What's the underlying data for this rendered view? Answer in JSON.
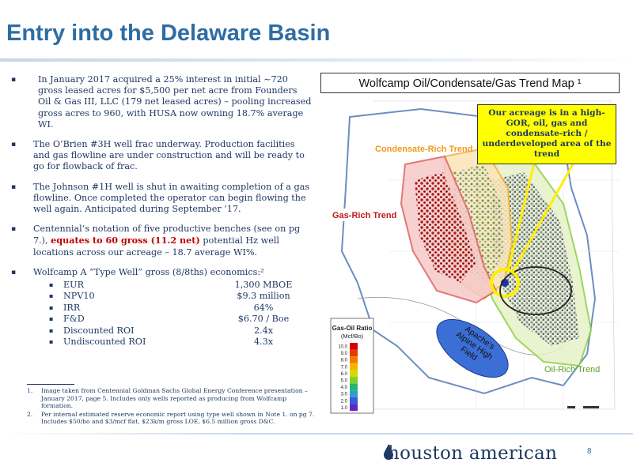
{
  "title": "Entry into the Delaware Basin",
  "bullets": {
    "b1": "In January 2017 acquired a 25% interest in initial ~720 gross leased acres for $5,500 per net acre from Founders Oil & Gas III, LLC (179 net leased acres) – pooling increased gross acres to 960, with HUSA now owning 18.7% average WI.",
    "b2": "The O’Brien #3H well frac underway. Production facilities and gas flowline are under construction and will be ready to go for flowback of frac.",
    "b3": "The Johnson #1H well is shut in awaiting completion of a gas flowline. Once completed the operator can begin flowing the well again.  Anticipated during September ’17.",
    "b4_pre": "Centennial’s notation of five productive benches (see on pg 7.), ",
    "b4_red": "equates to 60 gross (11.2 net)",
    "b4_post": " potential Hz well locations across our acreage – 18.7 average WI%.",
    "b5": "Wolfcamp A “Type Well” gross (8/8ths) economics:²",
    "economics": [
      {
        "label": "EUR",
        "value": "1,300 MBOE"
      },
      {
        "label": "NPV10",
        "value": "$9.3 million"
      },
      {
        "label": "IRR",
        "value": "64%"
      },
      {
        "label": "F&D",
        "value": "$6.70 / Boe"
      },
      {
        "label": "Discounted ROI",
        "value": "2.4x"
      },
      {
        "label": "Undiscounted ROI",
        "value": "4.3x"
      }
    ]
  },
  "notes": [
    {
      "num": "1.",
      "text": "Image taken from Centennial  Goldman Sachs Global Energy Conference presentation – January 2017, page 5.  Includes only wells reported as producing from Wolfcamp formation."
    },
    {
      "num": "2.",
      "text": "Per internal estimated reserve economic report using type well shown in Note 1. on pg 7.  Includes $50/bo and $3/mcf flat, $23k/m gross LOE, $6.5 million gross D&C."
    }
  ],
  "map": {
    "title": "Wolfcamp Oil/Condensate/Gas Trend Map ¹",
    "callout": "Our acreage is in a high-GOR, oil, gas and condensate-rich / underdeveloped area of the trend",
    "labels": {
      "condensate": "Condensate-Rich Trend",
      "gas": "Gas-Rich Trend",
      "oil": "Oil-Rich Trend",
      "apache": "Apache’s Alpine High Field",
      "legend_title": "Gas-Oil Ratio",
      "legend_unit": "(Mcf/Bo)"
    },
    "legend_ticks": [
      "10.0",
      "9.0",
      "8.0",
      "7.0",
      "6.0",
      "5.0",
      "4.0",
      "3.0",
      "2.0",
      "1.0"
    ],
    "legend_colors": [
      "#d40000",
      "#e83a00",
      "#f07a00",
      "#f5b400",
      "#d8d800",
      "#7fcf30",
      "#2fb070",
      "#2aa0c8",
      "#3a5ad8",
      "#5a2ac8"
    ]
  },
  "footer": {
    "logo_text": "houston american",
    "page": "8"
  },
  "colors": {
    "title_blue": "#2e6da4",
    "text_navy": "#1f3864",
    "highlight_red": "#c00000",
    "callout_yellow": "#ffff00"
  }
}
